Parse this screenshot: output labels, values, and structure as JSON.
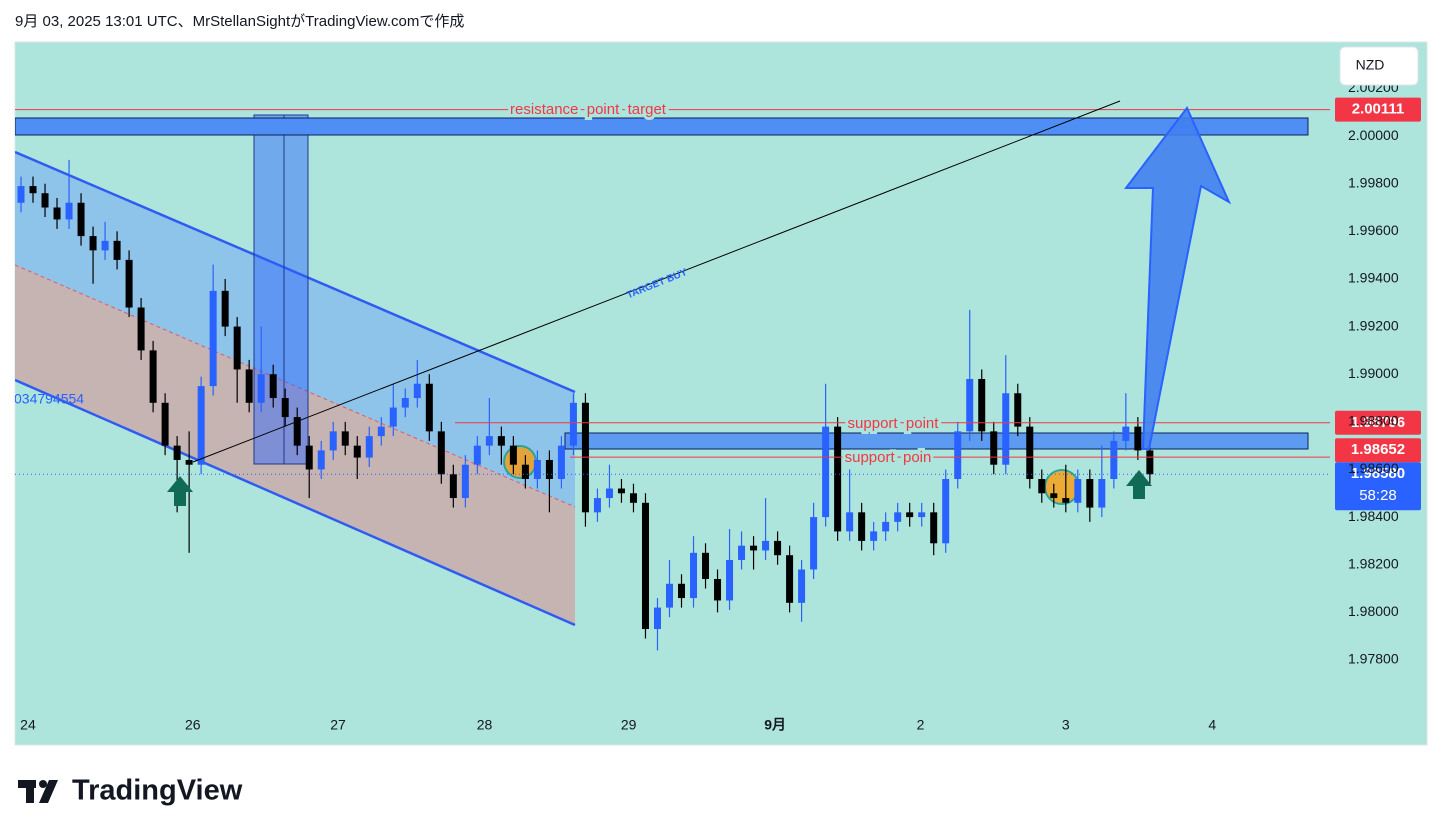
{
  "header": "9月 03, 2025 13:01 UTC、MrStellanSightがTradingView.comで作成",
  "footer_logo": "TradingView",
  "chart_data": {
    "type": "candlestick",
    "currency": "NZD",
    "x": [
      0,
      1,
      2,
      3,
      4,
      5,
      6,
      7,
      8,
      9,
      10,
      11,
      12,
      13,
      14,
      15,
      16,
      17,
      18,
      19,
      20,
      21,
      22,
      23,
      24,
      25,
      26,
      27,
      28,
      29,
      30,
      31,
      32,
      33,
      34,
      35,
      36,
      37,
      38,
      39,
      40,
      41,
      42,
      43,
      44,
      45,
      46,
      47,
      48,
      49,
      50,
      51,
      52,
      53,
      54,
      55,
      56,
      57,
      58,
      59,
      60,
      61,
      62,
      63,
      64,
      65,
      66,
      67,
      68,
      69,
      70,
      71,
      72,
      73,
      74,
      75,
      76,
      77,
      78,
      79,
      80,
      81,
      82,
      83,
      84,
      85,
      86,
      87,
      88,
      89,
      90,
      91,
      92,
      93,
      94
    ],
    "open": [
      1.9972,
      1.9979,
      1.9976,
      1.997,
      1.9965,
      1.9972,
      1.9958,
      1.9952,
      1.9956,
      1.9948,
      1.9928,
      1.991,
      1.9888,
      1.987,
      1.9864,
      1.9862,
      1.9895,
      1.9935,
      1.992,
      1.9902,
      1.9888,
      1.99,
      1.989,
      1.9882,
      1.987,
      1.986,
      1.9868,
      1.9876,
      1.987,
      1.9865,
      1.9874,
      1.9878,
      1.9886,
      1.989,
      1.9896,
      1.9876,
      1.9858,
      1.9848,
      1.9862,
      1.987,
      1.9874,
      1.987,
      1.9862,
      1.9856,
      1.9864,
      1.9856,
      1.987,
      1.9888,
      1.9842,
      1.9848,
      1.9852,
      1.985,
      1.9846,
      1.9793,
      1.9802,
      1.9812,
      1.9806,
      1.9825,
      1.9814,
      1.9805,
      1.9822,
      1.9828,
      1.9826,
      1.983,
      1.9824,
      1.9804,
      1.9818,
      1.984,
      1.9878,
      1.9834,
      1.9842,
      1.983,
      1.9834,
      1.9838,
      1.9842,
      1.984,
      1.9842,
      1.9829,
      1.9856,
      1.9876,
      1.9898,
      1.9876,
      1.9862,
      1.9892,
      1.9878,
      1.9856,
      1.985,
      1.9848,
      1.9846,
      1.9856,
      1.9844,
      1.9856,
      1.9872,
      1.9878,
      1.9868
    ],
    "high": [
      1.9983,
      1.9983,
      1.998,
      1.9974,
      1.999,
      1.9976,
      1.9962,
      1.9964,
      1.996,
      1.9952,
      1.9932,
      1.9914,
      1.9892,
      1.9874,
      1.9876,
      1.9899,
      1.9946,
      1.994,
      1.9924,
      1.9906,
      1.992,
      1.9904,
      1.9894,
      1.9886,
      1.9874,
      1.9872,
      1.988,
      1.988,
      1.9874,
      1.9878,
      1.9882,
      1.9896,
      1.9894,
      1.9906,
      1.99,
      1.988,
      1.9862,
      1.9866,
      1.9874,
      1.989,
      1.9878,
      1.9874,
      1.9866,
      1.9868,
      1.9868,
      1.9874,
      1.9892,
      1.9892,
      1.9852,
      1.9862,
      1.9856,
      1.9854,
      1.985,
      1.9806,
      1.9822,
      1.9816,
      1.9832,
      1.9829,
      1.9818,
      1.9835,
      1.9834,
      1.9832,
      1.9848,
      1.9834,
      1.9828,
      1.9822,
      1.9846,
      1.9896,
      1.9882,
      1.986,
      1.9846,
      1.9838,
      1.9842,
      1.9846,
      1.9846,
      1.9846,
      1.9846,
      1.986,
      1.988,
      1.9927,
      1.9902,
      1.988,
      1.9908,
      1.9896,
      1.9882,
      1.986,
      1.9854,
      1.9862,
      1.986,
      1.986,
      1.987,
      1.9876,
      1.9892,
      1.9882,
      1.9872
    ],
    "low": [
      1.9968,
      1.9972,
      1.9966,
      1.9961,
      1.9961,
      1.9954,
      1.9938,
      1.9948,
      1.9944,
      1.9924,
      1.9906,
      1.9884,
      1.9866,
      1.9842,
      1.9825,
      1.9858,
      1.9891,
      1.9916,
      1.9888,
      1.9884,
      1.9884,
      1.9886,
      1.9878,
      1.9866,
      1.9848,
      1.9856,
      1.9864,
      1.9866,
      1.9856,
      1.9861,
      1.987,
      1.9874,
      1.9882,
      1.9886,
      1.9872,
      1.9854,
      1.9844,
      1.9844,
      1.9858,
      1.9866,
      1.9862,
      1.9858,
      1.9852,
      1.9852,
      1.9842,
      1.9852,
      1.9866,
      1.9836,
      1.9838,
      1.9844,
      1.9846,
      1.9842,
      1.9789,
      1.9784,
      1.9798,
      1.9802,
      1.9802,
      1.981,
      1.98,
      1.9801,
      1.9818,
      1.9818,
      1.9822,
      1.982,
      1.98,
      1.9796,
      1.9814,
      1.9836,
      1.983,
      1.983,
      1.9826,
      1.9826,
      1.983,
      1.9834,
      1.9836,
      1.9836,
      1.9824,
      1.9825,
      1.9852,
      1.9872,
      1.9872,
      1.9858,
      1.9858,
      1.9874,
      1.9852,
      1.9846,
      1.9844,
      1.9842,
      1.9842,
      1.9838,
      1.984,
      1.9852,
      1.9868,
      1.9864,
      1.9854
    ],
    "close": [
      1.9979,
      1.9976,
      1.997,
      1.9965,
      1.9972,
      1.9958,
      1.9952,
      1.9956,
      1.9948,
      1.9928,
      1.991,
      1.9888,
      1.987,
      1.9864,
      1.9862,
      1.9895,
      1.9935,
      1.992,
      1.9902,
      1.9888,
      1.99,
      1.989,
      1.9882,
      1.987,
      1.986,
      1.9868,
      1.9876,
      1.987,
      1.9865,
      1.9874,
      1.9878,
      1.9886,
      1.989,
      1.9896,
      1.9876,
      1.9858,
      1.9848,
      1.9862,
      1.987,
      1.9874,
      1.987,
      1.9862,
      1.9856,
      1.9864,
      1.9856,
      1.987,
      1.9888,
      1.9842,
      1.9848,
      1.9852,
      1.985,
      1.9846,
      1.9793,
      1.9802,
      1.9812,
      1.9806,
      1.9825,
      1.9814,
      1.9805,
      1.9822,
      1.9828,
      1.9826,
      1.983,
      1.9824,
      1.9804,
      1.9818,
      1.984,
      1.9878,
      1.9834,
      1.9842,
      1.983,
      1.9834,
      1.9838,
      1.9842,
      1.984,
      1.9842,
      1.9829,
      1.9856,
      1.9876,
      1.9898,
      1.9876,
      1.9862,
      1.9892,
      1.9878,
      1.9856,
      1.985,
      1.9848,
      1.9846,
      1.9856,
      1.9844,
      1.9856,
      1.9872,
      1.9878,
      1.9868,
      1.9858
    ],
    "up_color": "#2962ff",
    "down_color": "#000000",
    "xlim": [
      -0.5,
      109
    ],
    "xticks": [
      {
        "value": 0.58,
        "label": "24"
      },
      {
        "value": 14.3,
        "label": "26"
      },
      {
        "value": 26.4,
        "label": "27"
      },
      {
        "value": 38.6,
        "label": "28"
      },
      {
        "value": 50.6,
        "label": "29"
      },
      {
        "value": 62.8,
        "label": "9月"
      },
      {
        "value": 74.9,
        "label": "2"
      },
      {
        "value": 87,
        "label": "3"
      },
      {
        "value": 99.2,
        "label": "4"
      }
    ],
    "ylim": [
      1.97443,
      2.00395
    ],
    "yticks": [
      {
        "value": 2.002,
        "label": "2.00200"
      },
      {
        "value": 2.0,
        "label": "2.00000"
      },
      {
        "value": 1.998,
        "label": "1.99800"
      },
      {
        "value": 1.996,
        "label": "1.99600"
      },
      {
        "value": 1.994,
        "label": "1.99400"
      },
      {
        "value": 1.992,
        "label": "1.99200"
      },
      {
        "value": 1.99,
        "label": "1.99000"
      },
      {
        "value": 1.988,
        "label": "1.98800"
      },
      {
        "value": 1.986,
        "label": "1.98600"
      },
      {
        "value": 1.984,
        "label": "1.98400"
      },
      {
        "value": 1.982,
        "label": "1.98200"
      },
      {
        "value": 1.98,
        "label": "1.98000"
      },
      {
        "value": 1.978,
        "label": "1.97800"
      }
    ],
    "price_levels": [
      {
        "value": 2.00111,
        "label": "2.00111",
        "color": "#f23645"
      },
      {
        "value": 1.98796,
        "label": "1.98796",
        "color": "#f23645"
      },
      {
        "value": 1.98652,
        "label": "1.98652",
        "color": "#f23645"
      }
    ],
    "last_price": {
      "value": 1.9858,
      "label": "1.98580",
      "countdown": "58:28",
      "color": "#2962ff"
    },
    "annotations": [
      "resistance  point  target",
      "support  point",
      "support  poin",
      "TARGET BUY",
      "034794554"
    ]
  }
}
